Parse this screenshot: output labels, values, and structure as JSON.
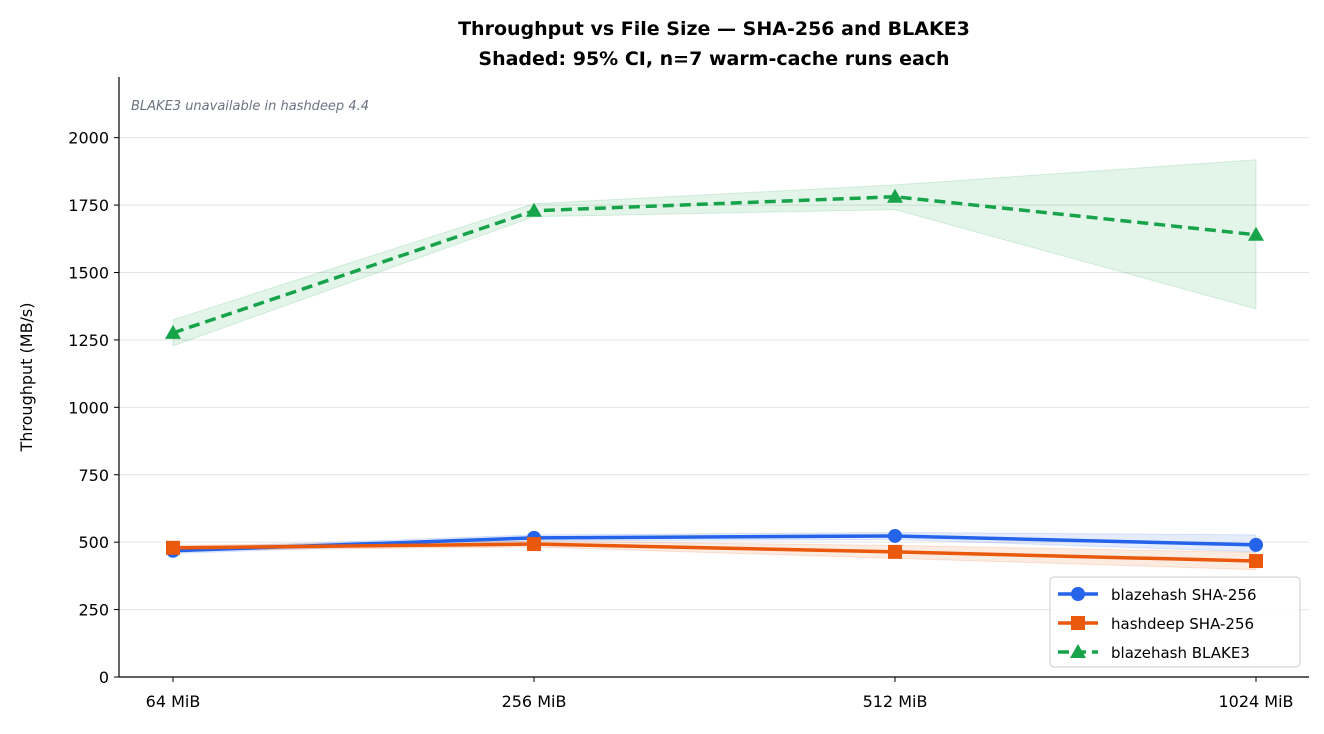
{
  "chart_data": {
    "type": "line",
    "title": "Throughput vs File Size — SHA-256 and BLAKE3",
    "subtitle": "Shaded: 95% CI, n=7 warm-cache runs each",
    "annotation": "BLAKE3 unavailable in hashdeep 4.4",
    "xlabel": "",
    "ylabel": "Throughput (MB/s)",
    "categories": [
      "64 MiB",
      "256 MiB",
      "512 MiB",
      "1024 MiB"
    ],
    "ylim": [
      0,
      2225
    ],
    "yticks": [
      0,
      250,
      500,
      750,
      1000,
      1250,
      1500,
      1750,
      2000
    ],
    "grid": "horizontal",
    "legend": "bottom-right",
    "series": [
      {
        "name": "blazehash SHA-256",
        "color": "#2563eb",
        "marker": "circle",
        "dash": "solid",
        "values": [
          468,
          516,
          523,
          490
        ],
        "ci_low": [
          458,
          505,
          510,
          464
        ],
        "ci_high": [
          478,
          527,
          536,
          527
        ]
      },
      {
        "name": "hashdeep SHA-256",
        "color": "#ea580c",
        "marker": "square",
        "dash": "solid",
        "values": [
          479,
          493,
          464,
          430
        ],
        "ci_low": [
          470,
          482,
          440,
          398
        ],
        "ci_high": [
          488,
          504,
          488,
          462
        ]
      },
      {
        "name": "blazehash BLAKE3",
        "color": "#16a34a",
        "marker": "triangle",
        "dash": "dashed",
        "values": [
          1276,
          1729,
          1781,
          1640
        ],
        "ci_low": [
          1228,
          1707,
          1733,
          1365
        ],
        "ci_high": [
          1325,
          1755,
          1825,
          1918
        ]
      }
    ]
  }
}
